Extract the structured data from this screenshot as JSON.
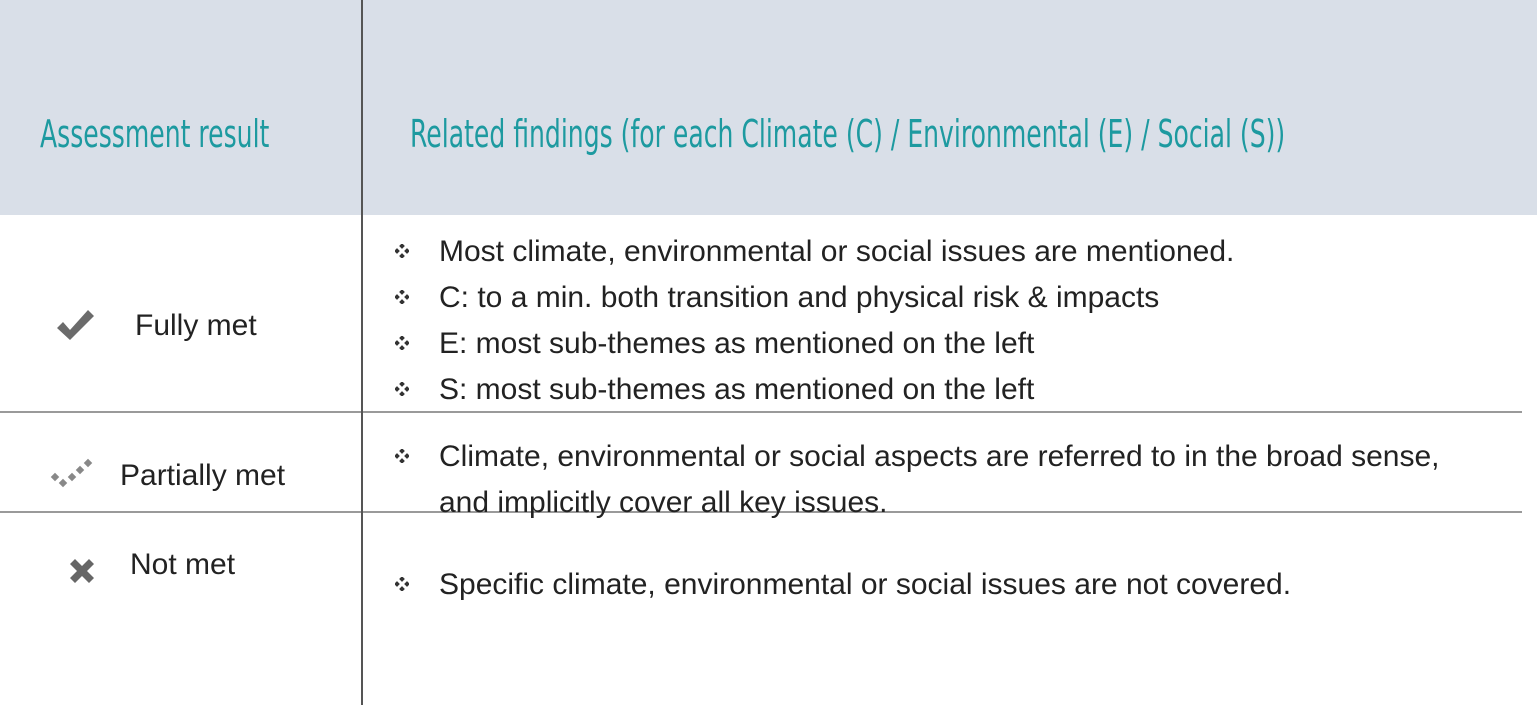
{
  "table": {
    "headers": [
      "Assessment result",
      "Related findings (for each Climate (C) /  Environmental (E) / Social (S))"
    ],
    "rows": [
      {
        "result": "Fully met",
        "findings": [
          "Most climate, environmental or social issues are mentioned.",
          "C: to a min. both transition and physical risk & impacts",
          "E: most sub-themes as mentioned on the left",
          "S: most sub-themes as mentioned on the left"
        ]
      },
      {
        "result": "Partially met",
        "findings": [
          "Climate, environmental or social aspects are referred to in the broad sense, and implicitly cover all key issues."
        ]
      },
      {
        "result": "Not met",
        "findings": [
          "Specific climate, environmental or social issues are not covered."
        ]
      }
    ]
  }
}
